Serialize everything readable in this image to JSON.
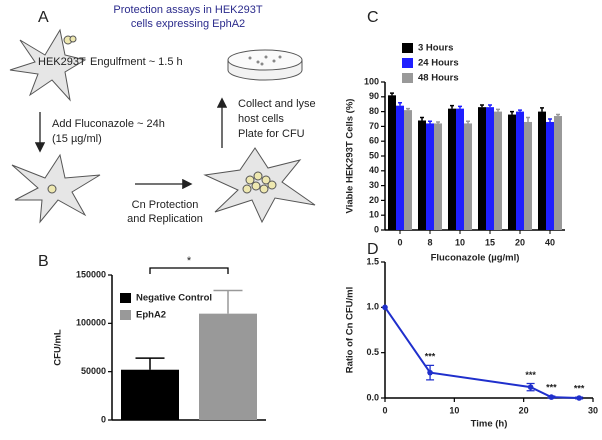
{
  "diagram": {
    "panel_label": "A",
    "title": [
      "Protection assays in HEK293T",
      "cells expressing EphA2"
    ],
    "cell_label": "HEK293T",
    "steps": [
      [
        "Engulfment ~ 1.5 h"
      ],
      [
        "Add Fluconazole ~ 24h",
        "(15 µg/ml)"
      ],
      [
        "Cn Protection",
        "and Replication"
      ],
      [
        "Collect and lyse",
        "host cells",
        "Plate for CFU"
      ]
    ]
  },
  "chart_data": [
    {
      "type": "bar",
      "panel_label": "B",
      "y_label": "CFU/mL",
      "ylim": [
        0,
        150000
      ],
      "yticks": [
        0,
        50000,
        100000,
        150000
      ],
      "series": [
        {
          "name": "Negative Control",
          "color": "#000000",
          "values": [
            52000
          ],
          "errors": [
            12000
          ]
        },
        {
          "name": "EphA2",
          "color": "#999999",
          "values": [
            110000
          ],
          "errors": [
            24000
          ]
        }
      ],
      "annotation": "*",
      "legend": "upper left"
    },
    {
      "type": "bar",
      "panel_label": "C",
      "y_label": "Viable HEK293T Cells (%)",
      "x_label": "Fluconazole (µg/ml)",
      "categories": [
        "0",
        "8",
        "10",
        "15",
        "20",
        "40"
      ],
      "ylim": [
        0,
        100
      ],
      "yticks": [
        0,
        10,
        20,
        30,
        40,
        50,
        60,
        70,
        80,
        90,
        100
      ],
      "series": [
        {
          "name": "3 Hours",
          "color": "#000000",
          "values": [
            91,
            74,
            82,
            83,
            78,
            80
          ],
          "errors": [
            1.5,
            2,
            2,
            1.5,
            2,
            2.5
          ]
        },
        {
          "name": "24 Hours",
          "color": "#1f1fff",
          "values": [
            84,
            72,
            82,
            83,
            80,
            73
          ],
          "errors": [
            2,
            1.5,
            1.5,
            1.5,
            1,
            2
          ]
        },
        {
          "name": "48 Hours",
          "color": "#999999",
          "values": [
            81,
            72,
            72,
            80,
            73,
            77
          ],
          "errors": [
            1,
            1,
            1.5,
            1.5,
            3,
            1
          ]
        }
      ],
      "legend": "top"
    },
    {
      "type": "line",
      "panel_label": "D",
      "y_label": "Ratio of Cn CFU/ml",
      "x_label": "Time (h)",
      "x": [
        0,
        6.5,
        21,
        24,
        28
      ],
      "xlim": [
        0,
        30
      ],
      "xticks": [
        0,
        10,
        20,
        30
      ],
      "ylim": [
        0,
        1.5
      ],
      "yticks": [
        {
          "value": 0,
          "label": "0.0"
        },
        0.5,
        {
          "value": 1,
          "label": "1.0"
        },
        1.5
      ],
      "series": [
        {
          "name": "Ratio",
          "color": "#1f2fcc",
          "values": [
            1.0,
            0.28,
            0.12,
            0.01,
            0.0
          ],
          "errors": [
            0,
            0.08,
            0.04,
            0.01,
            0.01
          ]
        }
      ],
      "point_labels": [
        null,
        "***",
        "***",
        "***",
        "***"
      ]
    }
  ]
}
